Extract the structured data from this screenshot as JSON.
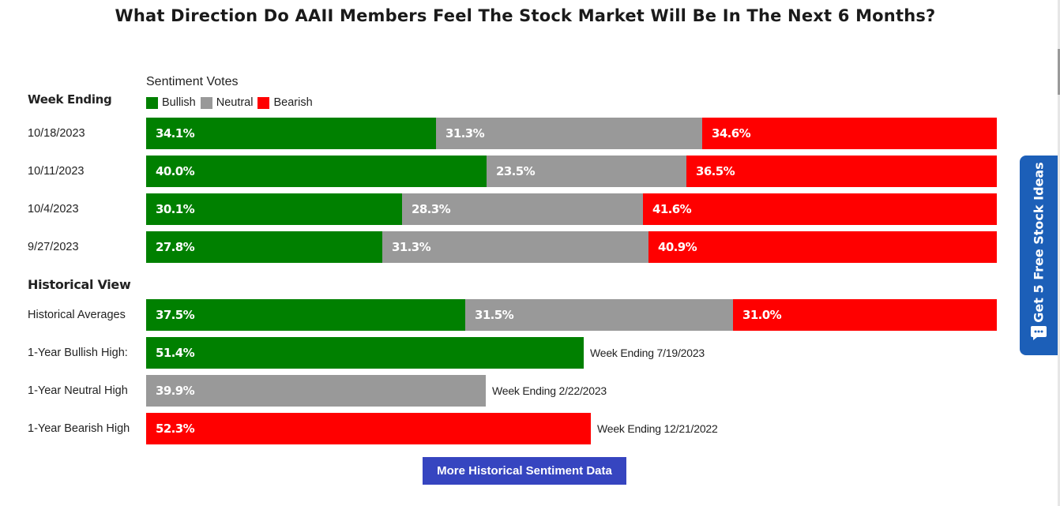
{
  "page": {
    "title": "What Direction Do AAII Members Feel The Stock Market Will Be In The Next 6 Months?"
  },
  "colors": {
    "bullish": "#008000",
    "neutral": "#999999",
    "bearish": "#ff0000",
    "button": "#3645c0",
    "side_tab": "#1c5fb8"
  },
  "chart_data": {
    "type": "bar",
    "title": "What Direction Do AAII Members Feel The Stock Market Will Be In The Next 6 Months?",
    "legend_title": "Sentiment Votes",
    "legend_placement": "top-left",
    "section_headers": {
      "weekly": "Week Ending",
      "historical": "Historical View"
    },
    "series": [
      {
        "name": "Bullish",
        "color": "#008000"
      },
      {
        "name": "Neutral",
        "color": "#999999"
      },
      {
        "name": "Bearish",
        "color": "#ff0000"
      }
    ],
    "weekly": [
      {
        "label": "10/18/2023",
        "values": [
          34.1,
          31.3,
          34.6
        ],
        "labels": [
          "34.1%",
          "31.3%",
          "34.6%"
        ]
      },
      {
        "label": "10/11/2023",
        "values": [
          40.0,
          23.5,
          36.5
        ],
        "labels": [
          "40.0%",
          "23.5%",
          "36.5%"
        ]
      },
      {
        "label": "10/4/2023",
        "values": [
          30.1,
          28.3,
          41.6
        ],
        "labels": [
          "30.1%",
          "28.3%",
          "41.6%"
        ]
      },
      {
        "label": "9/27/2023",
        "values": [
          27.8,
          31.3,
          40.9
        ],
        "labels": [
          "27.8%",
          "31.3%",
          "40.9%"
        ]
      }
    ],
    "historical_averages": {
      "label": "Historical Averages",
      "values": [
        37.5,
        31.5,
        31.0
      ],
      "labels": [
        "37.5%",
        "31.5%",
        "31.0%"
      ]
    },
    "one_year_highs": [
      {
        "label": "1-Year Bullish High:",
        "series": "Bullish",
        "value": 51.4,
        "value_label": "51.4%",
        "note": "Week Ending 7/19/2023"
      },
      {
        "label": "1-Year Neutral High",
        "series": "Neutral",
        "value": 39.9,
        "value_label": "39.9%",
        "note": "Week Ending 2/22/2023"
      },
      {
        "label": "1-Year Bearish High",
        "series": "Bearish",
        "value": 52.3,
        "value_label": "52.3%",
        "note": "Week Ending 12/21/2022"
      }
    ]
  },
  "button": {
    "label": "More Historical Sentiment Data"
  },
  "side_tab": {
    "label": "Get 5 Free Stock Ideas",
    "icon": "chat-bubble-icon"
  }
}
